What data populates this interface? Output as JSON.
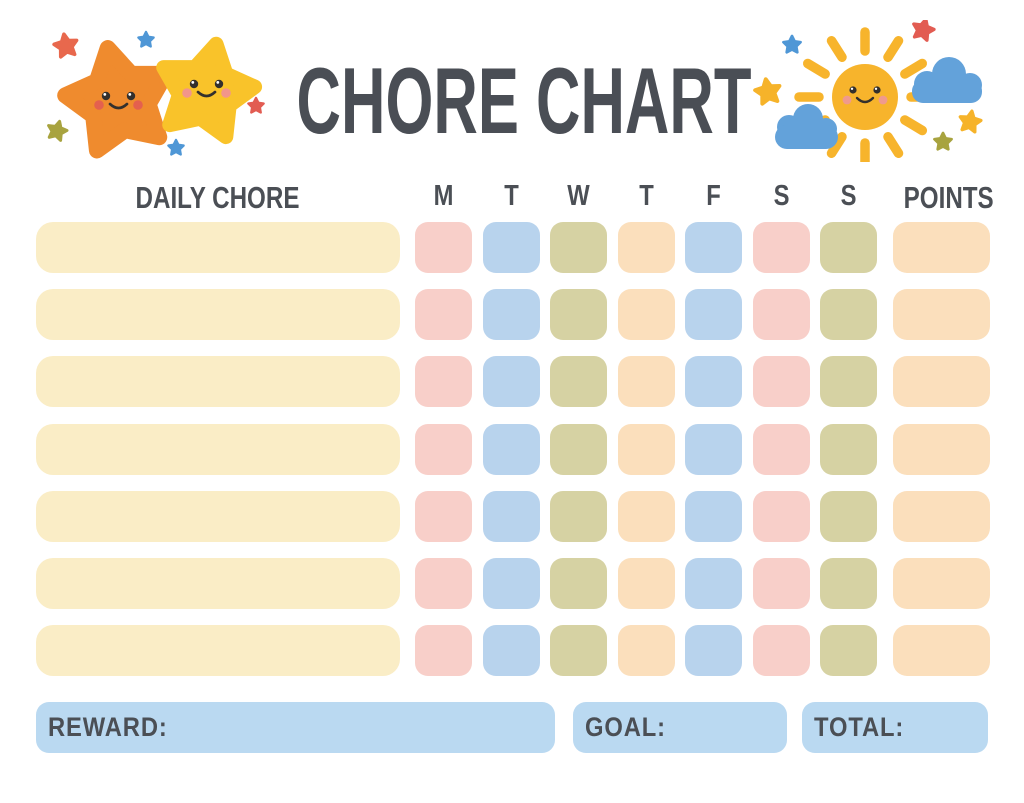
{
  "title": "CHORE CHART",
  "palette": {
    "pink": "#f8cfc9",
    "blue": "#b8d3ed",
    "olive": "#d6d2a3",
    "peach": "#fbdfbc",
    "cream": "#faedc6",
    "footer_blue": "#bad9f1",
    "text": "#4a4e54"
  },
  "header": {
    "chore_label": "DAILY CHORE",
    "day_labels": [
      "M",
      "T",
      "W",
      "T",
      "F",
      "S",
      "S"
    ],
    "points_label": "POINTS"
  },
  "rows": [
    {
      "chore": "",
      "days": [
        "pink",
        "blue",
        "olive",
        "peach",
        "blue",
        "pink",
        "olive"
      ],
      "points": "peach"
    },
    {
      "chore": "",
      "days": [
        "pink",
        "blue",
        "olive",
        "peach",
        "blue",
        "pink",
        "olive"
      ],
      "points": "peach"
    },
    {
      "chore": "",
      "days": [
        "pink",
        "blue",
        "olive",
        "peach",
        "blue",
        "pink",
        "olive"
      ],
      "points": "peach"
    },
    {
      "chore": "",
      "days": [
        "pink",
        "blue",
        "olive",
        "peach",
        "blue",
        "pink",
        "olive"
      ],
      "points": "peach"
    },
    {
      "chore": "",
      "days": [
        "pink",
        "blue",
        "olive",
        "peach",
        "blue",
        "pink",
        "olive"
      ],
      "points": "peach"
    },
    {
      "chore": "",
      "days": [
        "pink",
        "blue",
        "olive",
        "peach",
        "blue",
        "pink",
        "olive"
      ],
      "points": "peach"
    },
    {
      "chore": "",
      "days": [
        "pink",
        "blue",
        "olive",
        "peach",
        "blue",
        "pink",
        "olive"
      ],
      "points": "peach"
    }
  ],
  "footer": [
    {
      "label": "REWARD:",
      "value": ""
    },
    {
      "label": "GOAL:",
      "value": ""
    },
    {
      "label": "TOTAL:",
      "value": ""
    }
  ],
  "decor": {
    "left": "two smiling stars with small sparkle stars",
    "right": "smiling sun with clouds and sparkle stars"
  }
}
